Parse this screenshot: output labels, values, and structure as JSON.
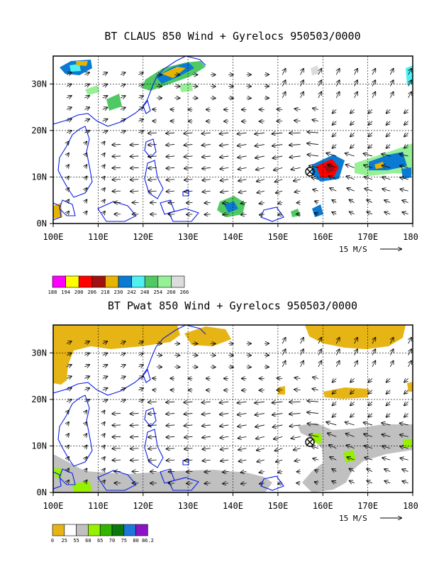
{
  "chart_data": [
    {
      "type": "heatmap",
      "title": "BT CLAUS 850 Wind + Gyrelocs 950503/0000",
      "xticks": [
        "100E",
        "110E",
        "120E",
        "130E",
        "140E",
        "150E",
        "160E",
        "170E",
        "180"
      ],
      "yticks": [
        "0N",
        "10N",
        "20N",
        "30N"
      ],
      "xlim": [
        100,
        180
      ],
      "ylim": [
        0,
        36
      ],
      "grid": true,
      "vector_reference": "15 M/S",
      "gyre_center": {
        "lon": 157.5,
        "lat": 11
      },
      "colorbar": {
        "labels": [
          "188",
          "194",
          "200",
          "206",
          "218",
          "230",
          "242",
          "248",
          "254",
          "260",
          "266"
        ],
        "colors": [
          "#ff00ff",
          "#ffff00",
          "#ff0000",
          "#a01010",
          "#e6b400",
          "#0a7ad2",
          "#50f0f0",
          "#50c864",
          "#96f096",
          "#dcdcdc"
        ]
      }
    },
    {
      "type": "heatmap",
      "title": "BT Pwat 850 Wind + Gyrelocs 950503/0000",
      "xticks": [
        "100E",
        "110E",
        "120E",
        "130E",
        "140E",
        "150E",
        "160E",
        "170E",
        "180"
      ],
      "yticks": [
        "0N",
        "10N",
        "20N",
        "30N"
      ],
      "xlim": [
        100,
        180
      ],
      "ylim": [
        0,
        36
      ],
      "grid": true,
      "vector_reference": "15 M/S",
      "gyre_center": {
        "lon": 157.5,
        "lat": 10.5
      },
      "colorbar": {
        "labels": [
          "0",
          "25",
          "55",
          "60",
          "65",
          "70",
          "75",
          "80",
          "86.2"
        ],
        "colors": [
          "#e6b414",
          "#ffffff",
          "#c0c0c0",
          "#96f000",
          "#32b400",
          "#0a780a",
          "#1e78dc",
          "#8c14c8"
        ]
      }
    }
  ]
}
